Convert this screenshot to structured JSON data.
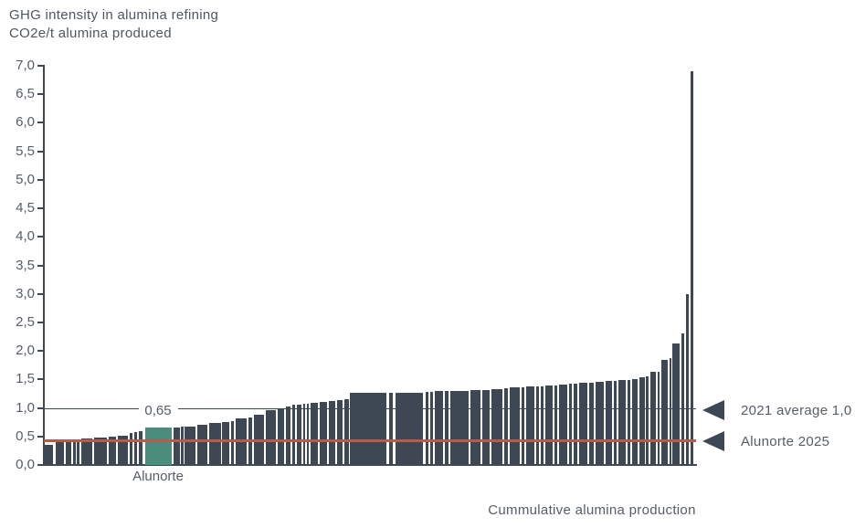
{
  "chart_data": {
    "type": "bar",
    "title": "GHG intensity in alumina refining",
    "subtitle": "CO2e/t alumina produced",
    "xlabel": "Cummulative alumina production",
    "ylabel": "CO2e/t alumina produced",
    "ylim": [
      0,
      7
    ],
    "y_tick_values": [
      0,
      0.5,
      1,
      1.5,
      2,
      2.5,
      3,
      3.5,
      4,
      4.5,
      5,
      5.5,
      6,
      6.5,
      7
    ],
    "y_tick_labels": [
      "0,0",
      "0,5",
      "1,0",
      "1,5",
      "2,0",
      "2,5",
      "3,0",
      "3,5",
      "4,0",
      "4,5",
      "5,0",
      "5,5",
      "6,0",
      "6,5",
      "7,0"
    ],
    "grid": "off",
    "legend": "none",
    "bar_color": "#3e4754",
    "highlight_color": "#4a8d7e",
    "alunorte": {
      "label": "Alunorte",
      "value_label": "0,65",
      "value": 0.65,
      "index": 12
    },
    "reference_lines": [
      {
        "label": "2021 average 1,0",
        "value": 1.0,
        "color": "#3e4754"
      },
      {
        "label": "Alunorte 2025",
        "value": 0.43,
        "color": "#b85c48"
      }
    ],
    "bars_format": "[x_px_on_cumulative_axis, width_px_production_share, ghg_intensity_t_co2e]",
    "bars": [
      [
        49,
        9,
        0.36
      ],
      [
        61,
        9,
        0.4
      ],
      [
        72,
        6,
        0.43
      ],
      [
        80,
        3,
        0.44
      ],
      [
        84,
        3,
        0.45
      ],
      [
        89,
        12,
        0.46
      ],
      [
        103,
        14,
        0.48
      ],
      [
        119,
        8,
        0.49
      ],
      [
        129,
        11,
        0.52
      ],
      [
        142,
        3,
        0.56
      ],
      [
        147,
        3,
        0.58
      ],
      [
        152,
        4,
        0.6
      ],
      [
        159,
        29,
        0.65
      ],
      [
        190,
        7,
        0.66
      ],
      [
        198,
        3,
        0.67
      ],
      [
        202,
        12,
        0.68
      ],
      [
        216,
        11,
        0.7
      ],
      [
        229,
        13,
        0.73
      ],
      [
        243,
        8,
        0.75
      ],
      [
        253,
        3,
        0.77
      ],
      [
        258,
        12,
        0.81
      ],
      [
        272,
        4,
        0.84
      ],
      [
        278,
        11,
        0.88
      ],
      [
        291,
        11,
        0.96
      ],
      [
        304,
        7,
        1.0
      ],
      [
        313,
        5,
        1.03
      ],
      [
        320,
        3,
        1.05
      ],
      [
        325,
        5,
        1.06
      ],
      [
        332,
        2,
        1.07
      ],
      [
        336,
        2,
        1.08
      ],
      [
        340,
        8,
        1.09
      ],
      [
        350,
        8,
        1.11
      ],
      [
        360,
        7,
        1.12
      ],
      [
        369,
        6,
        1.13
      ],
      [
        377,
        5,
        1.16
      ],
      [
        383,
        40,
        1.26
      ],
      [
        426,
        4,
        1.26
      ],
      [
        433,
        30,
        1.27
      ],
      [
        466,
        3,
        1.28
      ],
      [
        471,
        3,
        1.28
      ],
      [
        476,
        9,
        1.29
      ],
      [
        487,
        4,
        1.29
      ],
      [
        493,
        20,
        1.3
      ],
      [
        515,
        11,
        1.31
      ],
      [
        528,
        8,
        1.32
      ],
      [
        538,
        12,
        1.33
      ],
      [
        552,
        4,
        1.34
      ],
      [
        558,
        11,
        1.36
      ],
      [
        571,
        3,
        1.36
      ],
      [
        576,
        9,
        1.37
      ],
      [
        587,
        3,
        1.38
      ],
      [
        592,
        3,
        1.38
      ],
      [
        597,
        8,
        1.4
      ],
      [
        607,
        3,
        1.4
      ],
      [
        612,
        9,
        1.41
      ],
      [
        623,
        3,
        1.42
      ],
      [
        628,
        4,
        1.42
      ],
      [
        634,
        9,
        1.44
      ],
      [
        645,
        5,
        1.44
      ],
      [
        652,
        9,
        1.45
      ],
      [
        663,
        7,
        1.47
      ],
      [
        672,
        3,
        1.47
      ],
      [
        677,
        8,
        1.49
      ],
      [
        687,
        3,
        1.49
      ],
      [
        692,
        6,
        1.5
      ],
      [
        700,
        6,
        1.53
      ],
      [
        707,
        3,
        1.55
      ],
      [
        712,
        6,
        1.63
      ],
      [
        720,
        2,
        1.64
      ],
      [
        724,
        7,
        1.85
      ],
      [
        733,
        2,
        1.87
      ],
      [
        736,
        8,
        2.13
      ],
      [
        746,
        3,
        2.31
      ],
      [
        751,
        3,
        3.0
      ],
      [
        756,
        3,
        6.9
      ]
    ]
  }
}
